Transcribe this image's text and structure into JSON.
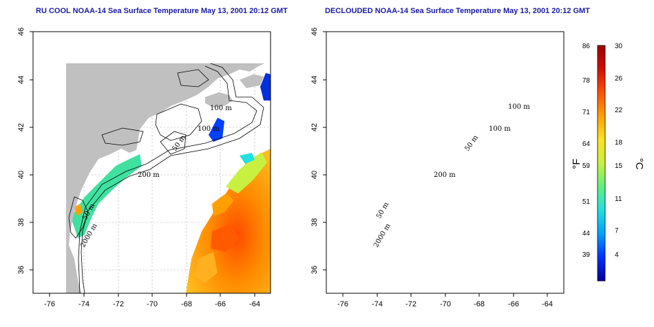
{
  "panels": [
    {
      "title": "RU COOL NOAA-14 Sea Surface Temperature May 13, 2001 20:12 GMT",
      "contour_labels": [
        "100 m",
        "100 m",
        "50 m",
        "200 m",
        "50 m",
        "2000 m"
      ]
    },
    {
      "title": "DECLOUDED NOAA-14 Sea Surface Temperature May 13, 2001 20:12 GMT",
      "contour_labels": [
        "100 m",
        "100 m",
        "50 m",
        "200 m",
        "50 m",
        "2000 m"
      ]
    }
  ],
  "axes": {
    "lon_ticks": [
      "-76",
      "-74",
      "-72",
      "-70",
      "-68",
      "-66",
      "-64"
    ],
    "lat_ticks": [
      "46",
      "44",
      "42",
      "40",
      "38",
      "36"
    ]
  },
  "colorbar": {
    "fahrenheit_labels": [
      "86",
      "78",
      "71",
      "64",
      "59",
      "51",
      "44",
      "39"
    ],
    "celsius_labels": [
      "30",
      "26",
      "22",
      "18",
      "15",
      "11",
      "7",
      "4"
    ],
    "fahrenheit_unit": "°F",
    "celsius_unit": "°C",
    "range_celsius": [
      0,
      30
    ],
    "colors": [
      "#0000a0",
      "#0030ff",
      "#00a0ff",
      "#20e0e0",
      "#60f080",
      "#c8f040",
      "#ffe020",
      "#ffa000",
      "#ff5000",
      "#d01000",
      "#a00000"
    ]
  },
  "colors": {
    "land": "#c0c0c0",
    "grid": "#a0a0a0"
  }
}
